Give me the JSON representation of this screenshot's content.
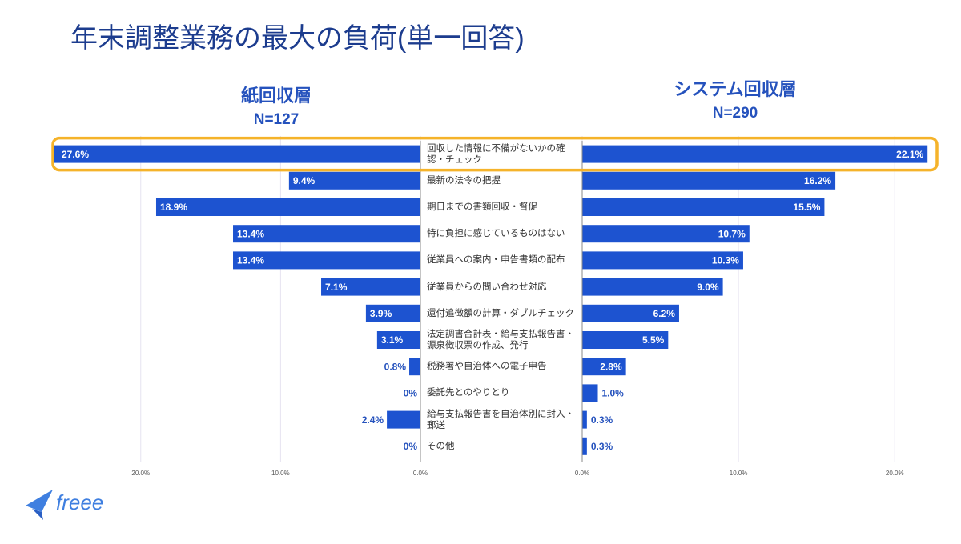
{
  "chart_data": {
    "type": "butterfly",
    "title": "年末調整業務の最大の負荷(単一回答)",
    "logo": "freee",
    "categories": [
      "回収した情報に不備がないかの確認・チェック",
      "最新の法令の把握",
      "期日までの書類回収・督促",
      "特に負担に感じているものはない",
      "従業員への案内・申告書類の配布",
      "従業員からの問い合わせ対応",
      "還付追徴額の計算・ダブルチェック",
      "法定調書合計表・給与支払報告書・源泉徴収票の作成、発行",
      "税務署や自治体への電子申告",
      "委託先とのやりとり",
      "給与支払報告書を自治体別に封入・郵送",
      "その他"
    ],
    "highlight_category": 0,
    "grid": true,
    "series": [
      {
        "name": "紙回収層",
        "subtitle": "N=127",
        "color": "#1d53d0",
        "values": [
          27.6,
          9.4,
          18.9,
          13.4,
          13.4,
          7.1,
          3.9,
          3.1,
          0.8,
          0,
          2.4,
          0
        ],
        "value_labels": [
          "27.6%",
          "9.4%",
          "18.9%",
          "13.4%",
          "13.4%",
          "7.1%",
          "3.9%",
          "3.1%",
          "0.8%",
          "0%",
          "2.4%",
          "0%"
        ],
        "xlim": [
          0,
          26
        ],
        "xticks": [
          {
            "value": 0,
            "label": "0.0%"
          },
          {
            "value": 10,
            "label": "10.0%"
          },
          {
            "value": 20,
            "label": "20.0%"
          }
        ]
      },
      {
        "name": "システム回収層",
        "subtitle": "N=290",
        "color": "#1d53d0",
        "values": [
          22.1,
          16.2,
          15.5,
          10.7,
          10.3,
          9.0,
          6.2,
          5.5,
          2.8,
          1.0,
          0.3,
          0.3
        ],
        "value_labels": [
          "22.1%",
          "16.2%",
          "15.5%",
          "10.7%",
          "10.3%",
          "9.0%",
          "6.2%",
          "5.5%",
          "2.8%",
          "1.0%",
          "0.3%",
          "0.3%"
        ],
        "xlim": [
          0,
          22.5
        ],
        "xticks": [
          {
            "value": 0,
            "label": "0.0%"
          },
          {
            "value": 10,
            "label": "10.0%"
          },
          {
            "value": 20,
            "label": "20.0%"
          }
        ]
      }
    ]
  }
}
